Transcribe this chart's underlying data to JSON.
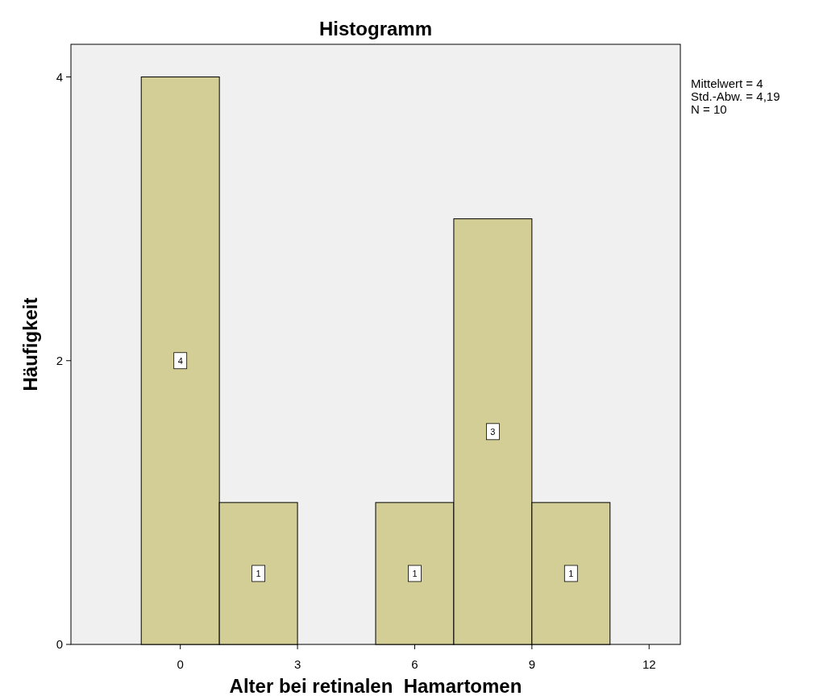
{
  "chart_data": {
    "type": "histogram",
    "title": "Histogramm",
    "xlabel": "Alter bei retinalen  Hamartomen",
    "ylabel": "Häufigkeit",
    "bins": [
      -1,
      1,
      3,
      5,
      7,
      9,
      11
    ],
    "values": [
      4,
      1,
      0,
      1,
      3,
      1
    ],
    "value_labels": [
      "4",
      "1",
      null,
      "1",
      "3",
      "1"
    ],
    "color": "#d3cd96",
    "xlim": [
      -2.8,
      12.8
    ],
    "xticks": [
      0,
      3,
      6,
      9,
      12
    ],
    "ylim": [
      0,
      4.23
    ],
    "yticks": [
      0,
      2,
      4
    ],
    "grid": false,
    "annotations": [
      "Mittelwert = 4",
      "Std.-Abw. = 4,19",
      "N = 10"
    ]
  }
}
